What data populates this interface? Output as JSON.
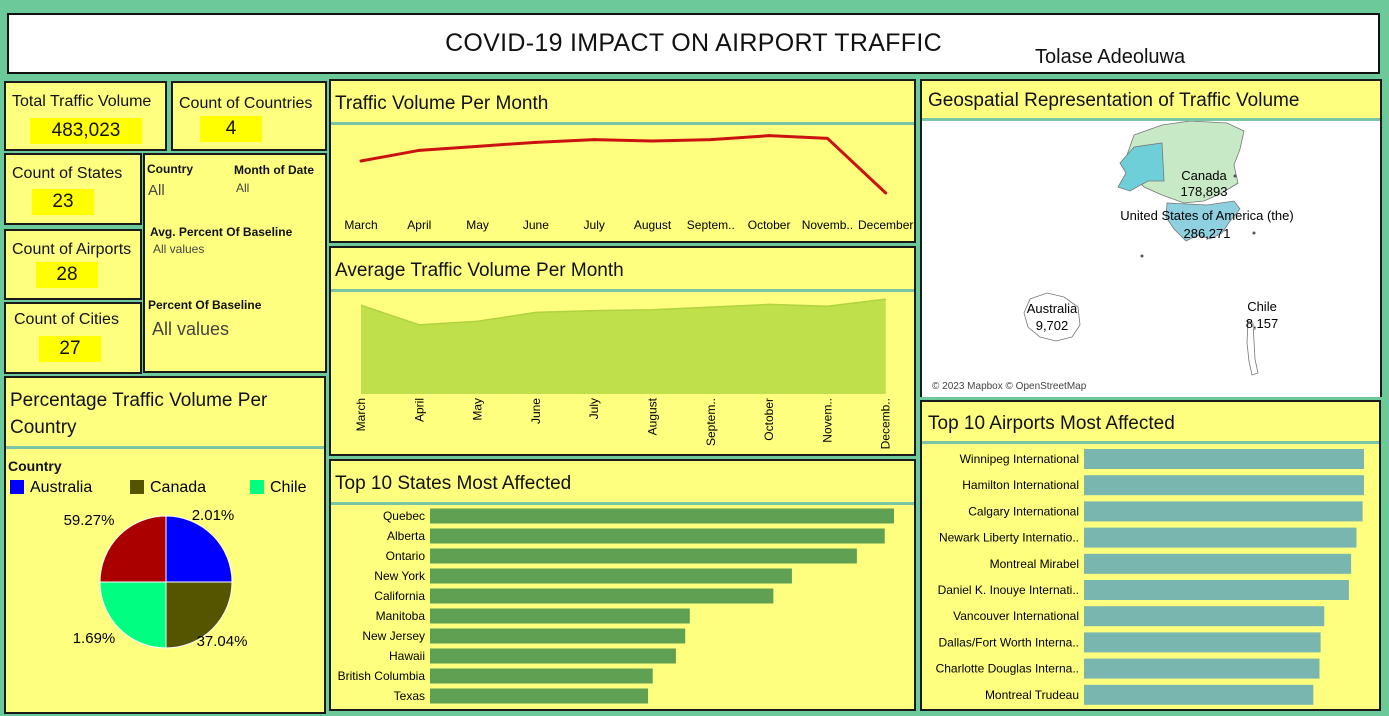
{
  "header": {
    "title": "COVID-19 IMPACT ON AIRPORT TRAFFIC",
    "author": "Tolase Adeoluwa"
  },
  "kpis": {
    "total_traffic": {
      "label": "Total Traffic Volume",
      "value": "483,023"
    },
    "countries": {
      "label": "Count of Countries",
      "value": "4"
    },
    "states": {
      "label": "Count of States",
      "value": "23"
    },
    "airports": {
      "label": "Count of Airports",
      "value": "28"
    },
    "cities": {
      "label": "Count of Cities",
      "value": "27"
    }
  },
  "filters": {
    "country": {
      "label": "Country",
      "value": "All"
    },
    "month": {
      "label": "Month of Date",
      "value": "All"
    },
    "avg_pct": {
      "label": "Avg. Percent Of Baseline",
      "value": "All values"
    },
    "pct": {
      "label": "Percent Of Baseline",
      "value": "All values"
    }
  },
  "colors": {
    "line": "#cc1111",
    "area": "#bfe04a",
    "state_bar": "#5fa052",
    "airport_bar": "#79b6b0",
    "australia": "#0000ff",
    "canada": "#555500",
    "chile": "#00ff80",
    "usa": "#aa0000",
    "map_canada": "#c7e9c6",
    "map_usa": "#8fd0e0",
    "map_alaska": "#6fcfd9"
  },
  "chart_data": [
    {
      "id": "traffic_per_month",
      "type": "line",
      "title": "Traffic Volume Per Month",
      "categories": [
        "March",
        "April",
        "May",
        "June",
        "July",
        "August",
        "Septem..",
        "October",
        "Novemb..",
        "December"
      ],
      "values": [
        48000,
        52000,
        53500,
        55000,
        56000,
        55500,
        56000,
        57500,
        56500,
        36000
      ],
      "ylim": [
        30000,
        60000
      ]
    },
    {
      "id": "avg_traffic_per_month",
      "type": "area",
      "title": "Average Traffic Volume Per Month",
      "categories": [
        "March",
        "April",
        "May",
        "June",
        "July",
        "August",
        "Septem..",
        "October",
        "Novem..",
        "Decemb.."
      ],
      "values": [
        100,
        78,
        82,
        92,
        94,
        95,
        98,
        101,
        99,
        107
      ],
      "ylim": [
        0,
        115
      ]
    },
    {
      "id": "top_states",
      "type": "bar",
      "title": "Top 10 States Most Affected",
      "categories": [
        "Quebec",
        "Alberta",
        "Ontario",
        "New York",
        "California",
        "Manitoba",
        "New Jersey",
        "Hawaii",
        "British Columbia",
        "Texas"
      ],
      "values": [
        100,
        98,
        92,
        78,
        74,
        56,
        55,
        53,
        48,
        47
      ],
      "xlim": [
        0,
        100
      ]
    },
    {
      "id": "top_airports",
      "type": "bar",
      "title": "Top 10 Airports Most Affected",
      "categories": [
        "Winnipeg International",
        "Hamilton International",
        "Calgary International",
        "Newark Liberty Internatio..",
        "Montreal Mirabel",
        "Daniel K. Inouye Internati..",
        "Vancouver International",
        "Dallas/Fort Worth Interna..",
        "Charlotte Douglas Interna..",
        "Montreal Trudeau"
      ],
      "values": [
        100,
        100,
        99.5,
        97.3,
        95.4,
        94.6,
        85.8,
        84.5,
        84.1,
        81.9
      ],
      "xlim": [
        0,
        100
      ]
    },
    {
      "id": "pct_per_country",
      "type": "pie",
      "title": "Percentage Traffic Volume Per Country",
      "legend_title": "Country",
      "legend": [
        "Australia",
        "Canada",
        "Chile"
      ],
      "slices": [
        {
          "name": "Australia",
          "value": 2.01,
          "label": "2.01%"
        },
        {
          "name": "Canada",
          "value": 37.04,
          "label": "37.04%"
        },
        {
          "name": "Chile",
          "value": 1.69,
          "label": "1.69%"
        },
        {
          "name": "United States of America (the)",
          "value": 59.27,
          "label": "59.27%"
        }
      ]
    }
  ],
  "map": {
    "title": "Geospatial Representation of Traffic Volume",
    "attribution": "© 2023 Mapbox © OpenStreetMap",
    "labels": [
      {
        "country": "Canada",
        "value": "178,893"
      },
      {
        "country": "United States of America (the)",
        "value": "286,271"
      },
      {
        "country": "Australia",
        "value": "9,702"
      },
      {
        "country": "Chile",
        "value": "8,157"
      }
    ]
  }
}
